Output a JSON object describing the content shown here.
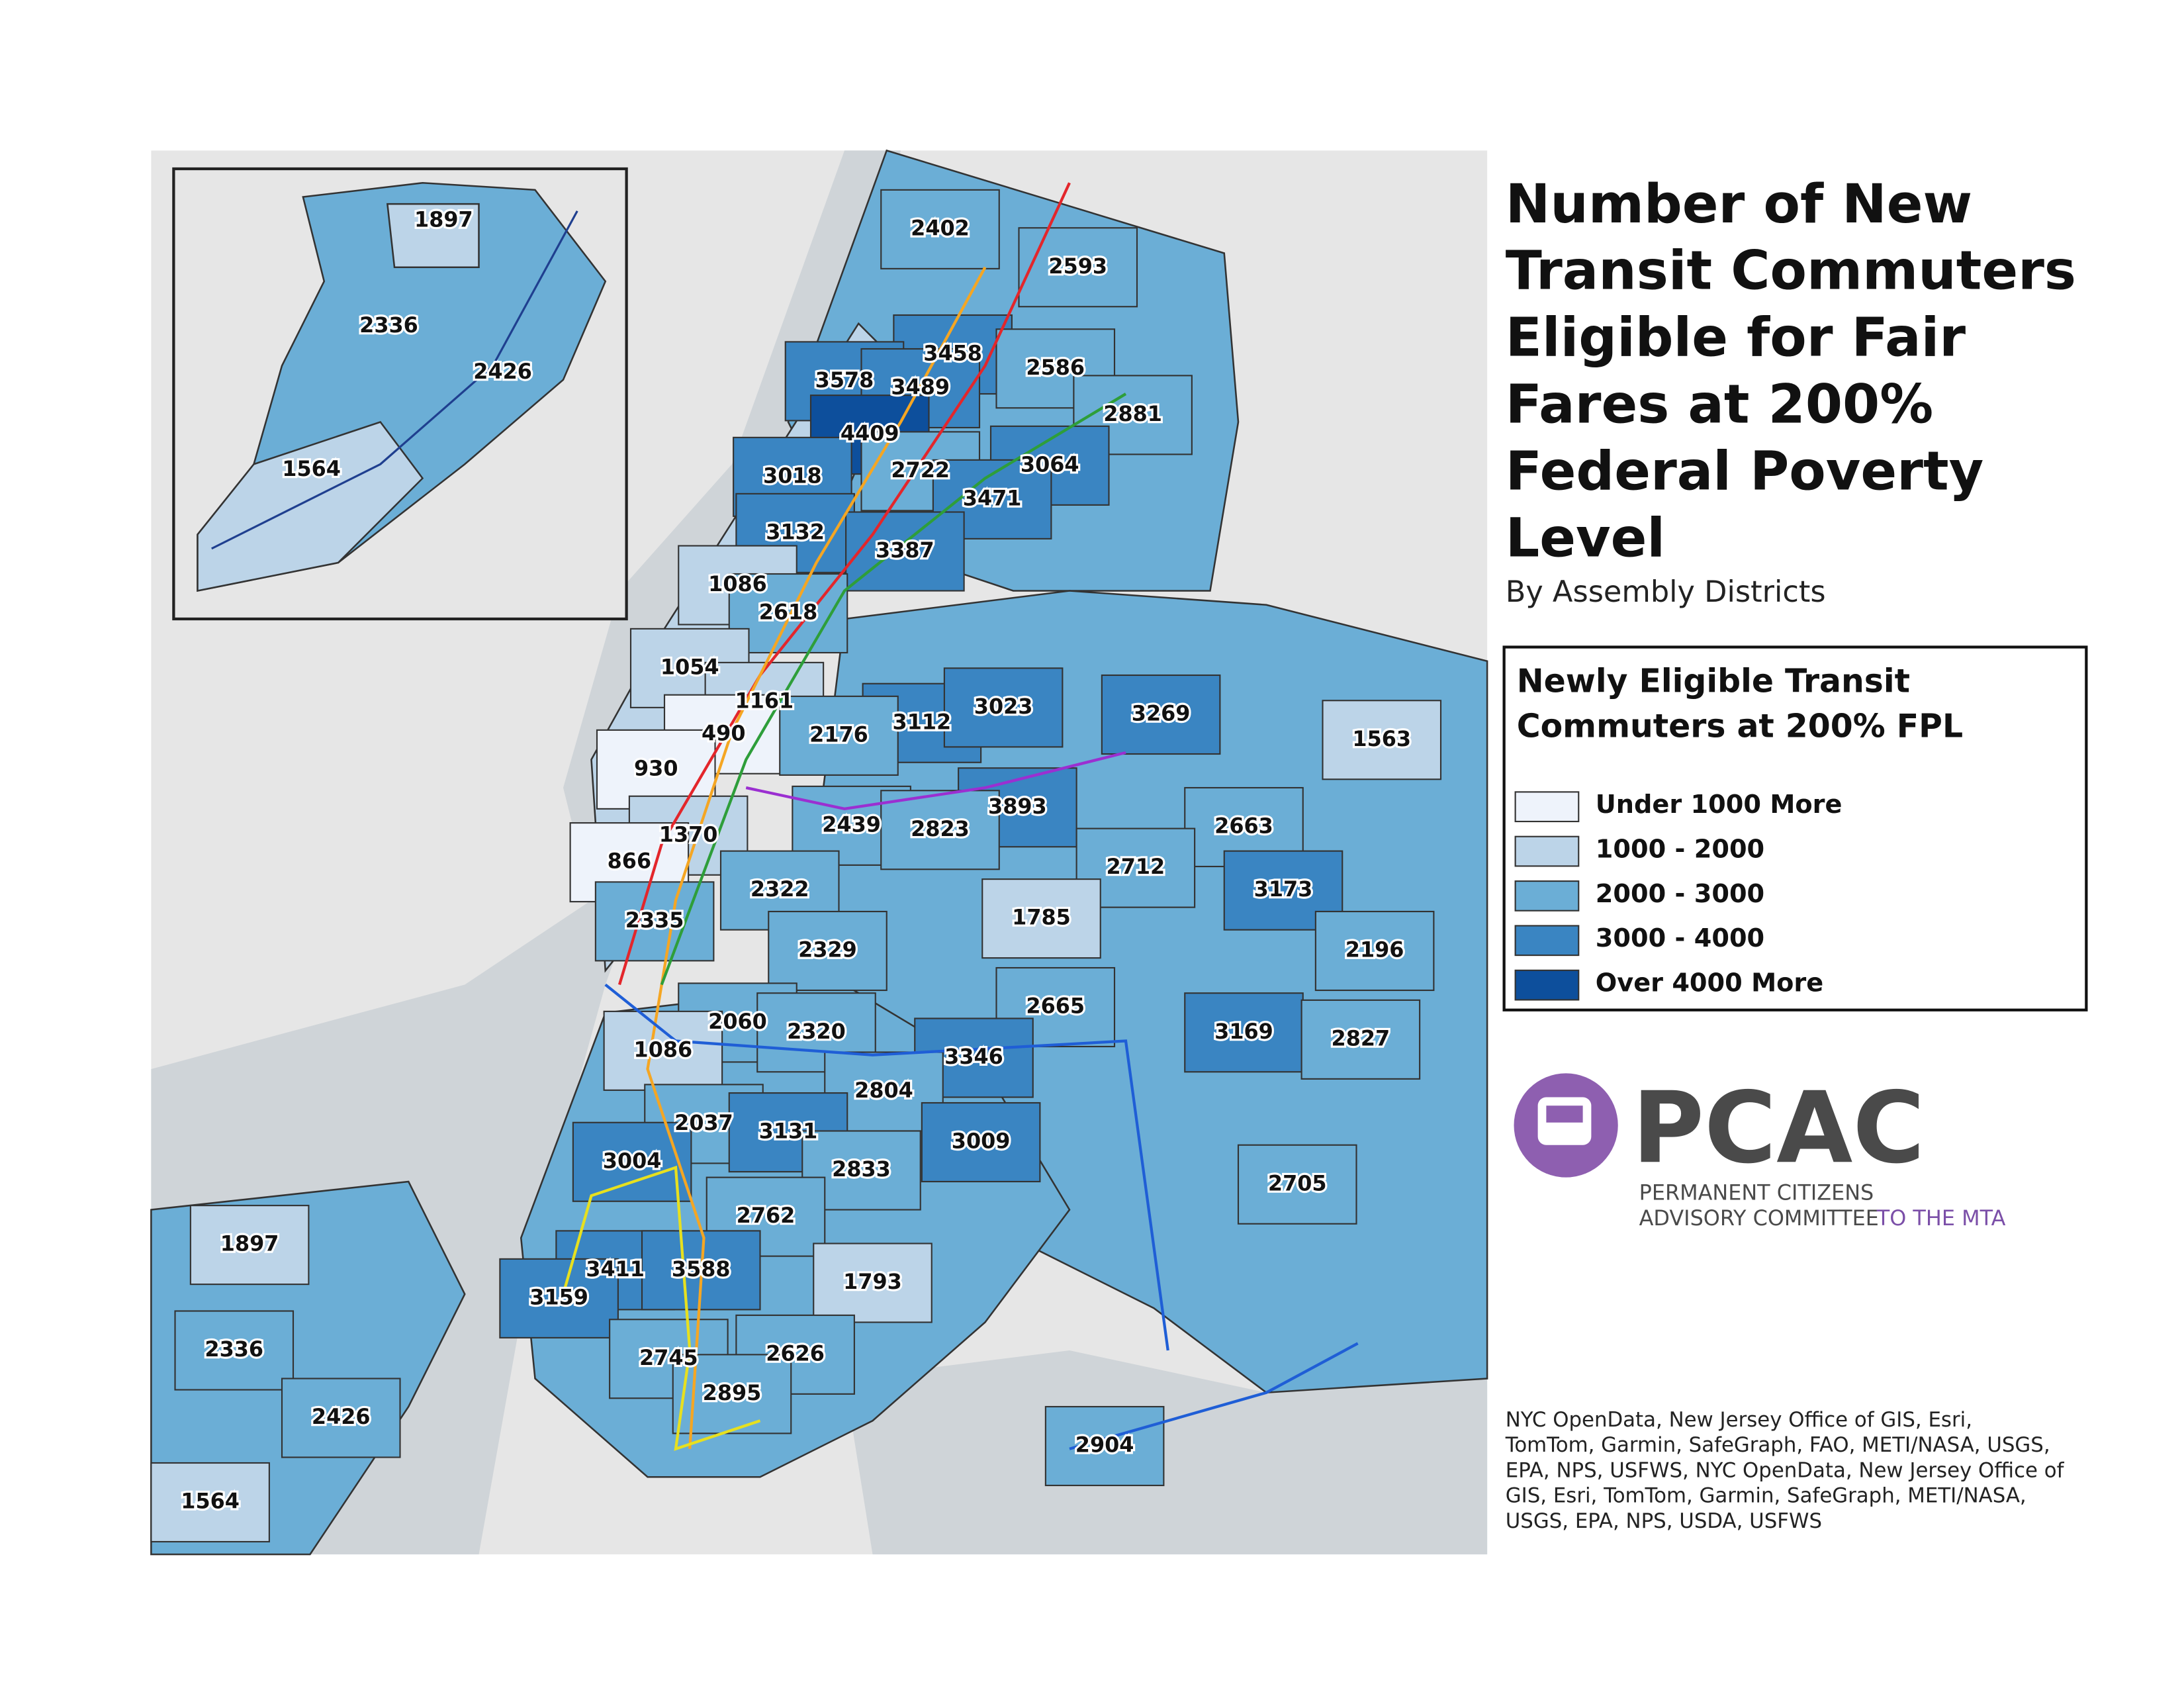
{
  "title_lines": [
    "Number of New",
    "Transit Commuters",
    "Eligible for Fair",
    "Fares at 200%",
    "Federal Poverty",
    "Level"
  ],
  "subtitle": "By Assembly Districts",
  "legend": {
    "title_lines": [
      "Newly Eligible Transit",
      "Commuters at 200% FPL"
    ],
    "items": [
      {
        "label": "Under 1000 More",
        "color": "#eef3fb"
      },
      {
        "label": "1000 - 2000",
        "color": "#bcd4e8"
      },
      {
        "label": "2000 - 3000",
        "color": "#6baed6"
      },
      {
        "label": "3000 - 4000",
        "color": "#3a85c2"
      },
      {
        "label": "Over 4000 More",
        "color": "#0d4f9c"
      }
    ]
  },
  "districts": [
    {
      "value": 2402
    },
    {
      "value": 2593
    },
    {
      "value": 3458
    },
    {
      "value": 3578
    },
    {
      "value": 3489
    },
    {
      "value": 2586
    },
    {
      "value": 2881
    },
    {
      "value": 4409
    },
    {
      "value": 3018
    },
    {
      "value": 2722
    },
    {
      "value": 3064
    },
    {
      "value": 3471
    },
    {
      "value": 3132
    },
    {
      "value": 3387
    },
    {
      "value": 1086
    },
    {
      "value": 2618
    },
    {
      "value": 1054
    },
    {
      "value": 1161
    },
    {
      "value": 490
    },
    {
      "value": 3112
    },
    {
      "value": 3023
    },
    {
      "value": 3269
    },
    {
      "value": 1563
    },
    {
      "value": 2176
    },
    {
      "value": 930
    },
    {
      "value": 3893
    },
    {
      "value": 2439
    },
    {
      "value": 2823
    },
    {
      "value": 2663
    },
    {
      "value": 1370
    },
    {
      "value": 866
    },
    {
      "value": 2712
    },
    {
      "value": 2322
    },
    {
      "value": 3173
    },
    {
      "value": 1785
    },
    {
      "value": 2335
    },
    {
      "value": 2329
    },
    {
      "value": 2196
    },
    {
      "value": 2665
    },
    {
      "value": 2060
    },
    {
      "value": 2320
    },
    {
      "value": 3169
    },
    {
      "value": 2827
    },
    {
      "value": 3346
    },
    {
      "value": 1086
    },
    {
      "value": 2804
    },
    {
      "value": 2037
    },
    {
      "value": 3131
    },
    {
      "value": 3009
    },
    {
      "value": 3004
    },
    {
      "value": 2833
    },
    {
      "value": 2705
    },
    {
      "value": 2762
    },
    {
      "value": 1897
    },
    {
      "value": 1793
    },
    {
      "value": 3411
    },
    {
      "value": 3588
    },
    {
      "value": 3159
    },
    {
      "value": 2336
    },
    {
      "value": 2745
    },
    {
      "value": 2626
    },
    {
      "value": 2895
    },
    {
      "value": 2426
    },
    {
      "value": 2904
    },
    {
      "value": 1564
    }
  ],
  "inset_districts": [
    {
      "value": 1897
    },
    {
      "value": 2336
    },
    {
      "value": 2426
    },
    {
      "value": 1564
    }
  ],
  "logo": {
    "name": "PCAC",
    "line1": "PERMANENT CITIZENS",
    "line2": "ADVISORY COMMITTEE",
    "line3": "TO THE MTA"
  },
  "attribution_lines": [
    "NYC OpenData, New Jersey Office of GIS, Esri,",
    "TomTom, Garmin, SafeGraph, FAO, METI/NASA, USGS,",
    "EPA, NPS, USFWS, NYC OpenData, New Jersey Office of",
    "GIS, Esri, TomTom, Garmin, SafeGraph, METI/NASA,",
    "USGS, EPA, NPS, USDA, USFWS"
  ]
}
